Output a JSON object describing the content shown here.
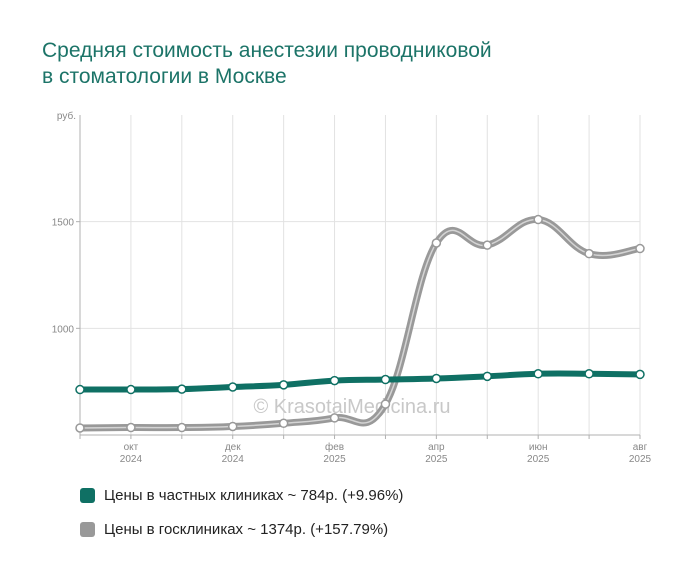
{
  "title_line1": "Средняя стоимость анестезии проводниковой",
  "title_line2": "в стоматологии в Москве",
  "watermark": "© KrasotaiMedicina.ru",
  "chart_data": {
    "type": "line",
    "ylabel": "руб.",
    "ylim": [
      500,
      2000
    ],
    "yticks": [
      1000,
      1500
    ],
    "x_ticks": [
      {
        "month": "окт",
        "year": "2024"
      },
      {
        "month": "дек",
        "year": "2024"
      },
      {
        "month": "фев",
        "year": "2025"
      },
      {
        "month": "апр",
        "year": "2025"
      },
      {
        "month": "июн",
        "year": "2025"
      },
      {
        "month": "авг",
        "year": "2025"
      }
    ],
    "x": [
      "2024-09",
      "2024-10",
      "2024-11",
      "2024-12",
      "2025-01",
      "2025-02",
      "2025-03",
      "2025-04",
      "2025-05",
      "2025-06",
      "2025-07",
      "2025-08"
    ],
    "series": [
      {
        "name": "Цены в частных клиниках ~ 784р. (+9.96%)",
        "color": "#0f7064",
        "values": [
          713,
          713,
          715,
          725,
          735,
          755,
          760,
          765,
          775,
          787,
          787,
          784
        ]
      },
      {
        "name": "Цены в госклиниках ~ 1374р. (+157.79%)",
        "color": "#999999",
        "values": [
          533,
          535,
          535,
          540,
          555,
          580,
          645,
          1400,
          1390,
          1510,
          1350,
          1374
        ]
      }
    ],
    "grid": true,
    "legend_position": "bottom-left"
  }
}
